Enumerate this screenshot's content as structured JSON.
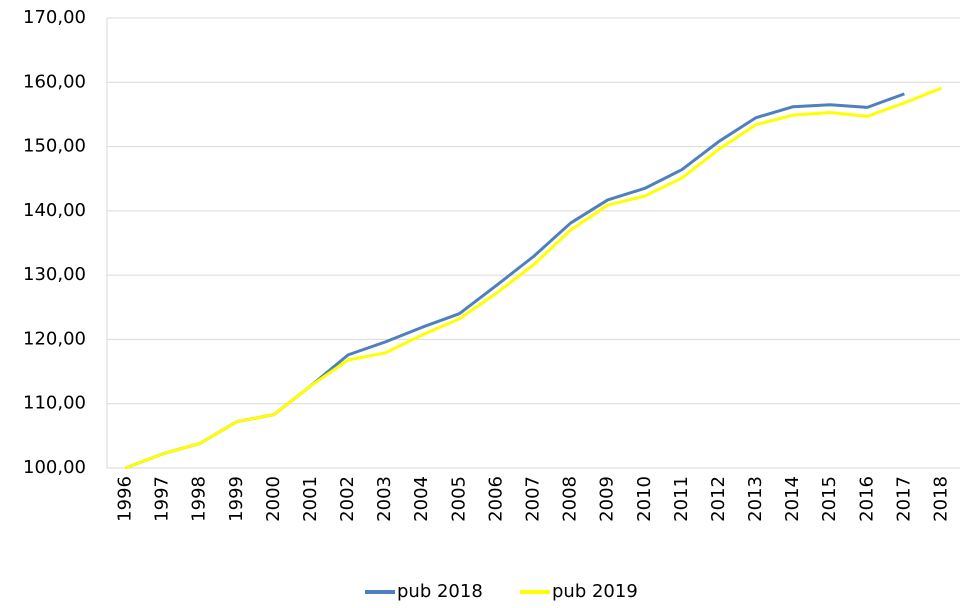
{
  "chart_data": {
    "type": "line",
    "categories": [
      "1996",
      "1997",
      "1998",
      "1999",
      "2000",
      "2001",
      "2002",
      "2003",
      "2004",
      "2005",
      "2006",
      "2007",
      "2008",
      "2009",
      "2010",
      "2011",
      "2012",
      "2013",
      "2014",
      "2015",
      "2016",
      "2017",
      "2018"
    ],
    "series": [
      {
        "name": "pub 2018",
        "color": "#4f7fbd",
        "values": [
          100,
          102.2,
          103.8,
          107.2,
          108.3,
          112.8,
          117.6,
          119.6,
          121.9,
          124.0,
          128.4,
          132.9,
          138.1,
          141.7,
          143.5,
          146.4,
          150.8,
          154.5,
          156.2,
          156.5,
          156.1,
          158.2,
          null
        ]
      },
      {
        "name": "pub 2019",
        "color": "#ffff00",
        "values": [
          100,
          102.2,
          103.8,
          107.2,
          108.3,
          112.8,
          116.8,
          117.9,
          120.7,
          123.2,
          127.2,
          131.6,
          137.0,
          140.9,
          142.3,
          145.1,
          149.6,
          153.4,
          154.9,
          155.3,
          154.7,
          156.8,
          159.1
        ]
      }
    ],
    "ylim": [
      100,
      170
    ],
    "yticks": [
      {
        "value": 100,
        "label": "100,00"
      },
      {
        "value": 110,
        "label": "110,00"
      },
      {
        "value": 120,
        "label": "120,00"
      },
      {
        "value": 130,
        "label": "130,00"
      },
      {
        "value": 140,
        "label": "140,00"
      },
      {
        "value": 150,
        "label": "150,00"
      },
      {
        "value": 160,
        "label": "160,00"
      },
      {
        "value": 170,
        "label": "170,00"
      }
    ],
    "grid": true,
    "legend": "bottom"
  }
}
